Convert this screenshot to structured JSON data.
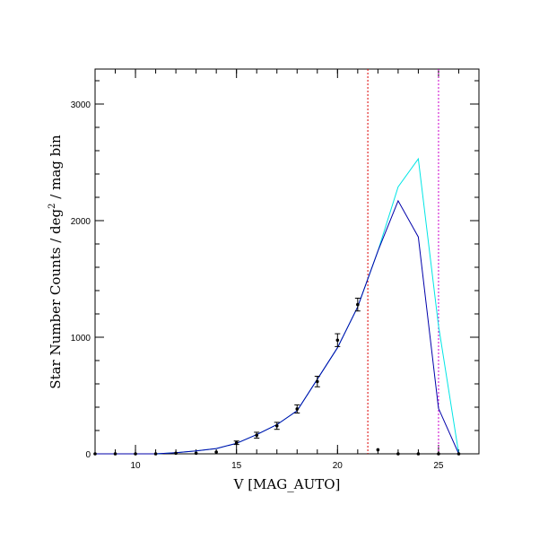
{
  "chart_data": {
    "type": "line",
    "title": "",
    "xlabel": "V [MAG_AUTO]",
    "ylabel_main": "Star Number Counts / deg",
    "ylabel_sup": "2",
    "ylabel_tail": " / mag bin",
    "xlim": [
      8,
      27
    ],
    "ylim": [
      0,
      3300
    ],
    "xticks": [
      10,
      15,
      20,
      25
    ],
    "yticks": [
      0,
      1000,
      2000,
      3000
    ],
    "x_minor_step": 1,
    "y_minor_step": 200,
    "grid": false,
    "series": [
      {
        "name": "",
        "color": "#00e5e5",
        "x": [
          8,
          9,
          10,
          11,
          12,
          13,
          14,
          15,
          16,
          17,
          18,
          19,
          20,
          21,
          22,
          23,
          24,
          25,
          26
        ],
        "y": [
          0,
          0,
          0,
          0,
          10,
          25,
          45,
          90,
          165,
          250,
          370,
          640,
          910,
          1260,
          1740,
          2290,
          2530,
          1100,
          0
        ]
      },
      {
        "name": "",
        "color": "#0000aa",
        "x": [
          8,
          9,
          10,
          11,
          12,
          13,
          14,
          15,
          16,
          17,
          18,
          19,
          20,
          21,
          22,
          23,
          24,
          25,
          26
        ],
        "y": [
          0,
          0,
          0,
          0,
          10,
          25,
          45,
          90,
          165,
          250,
          370,
          640,
          910,
          1260,
          1740,
          2170,
          1860,
          390,
          0
        ]
      }
    ],
    "observed_points": {
      "x": [
        8,
        9,
        10,
        11,
        12,
        13,
        14,
        15,
        16,
        17,
        18,
        19,
        20,
        21,
        22,
        23,
        24,
        25,
        26
      ],
      "y": [
        0,
        0,
        0,
        0,
        5,
        5,
        15,
        95,
        160,
        240,
        385,
        620,
        975,
        1280,
        35,
        0,
        0,
        0,
        0
      ],
      "err": [
        0,
        0,
        0,
        0,
        0,
        0,
        0,
        15,
        25,
        30,
        35,
        45,
        55,
        55,
        0,
        0,
        0,
        0,
        0
      ]
    },
    "vlines": [
      {
        "x": 21.5,
        "color": "#dd0000"
      },
      {
        "x": 25.0,
        "color": "#cc00cc"
      }
    ]
  }
}
